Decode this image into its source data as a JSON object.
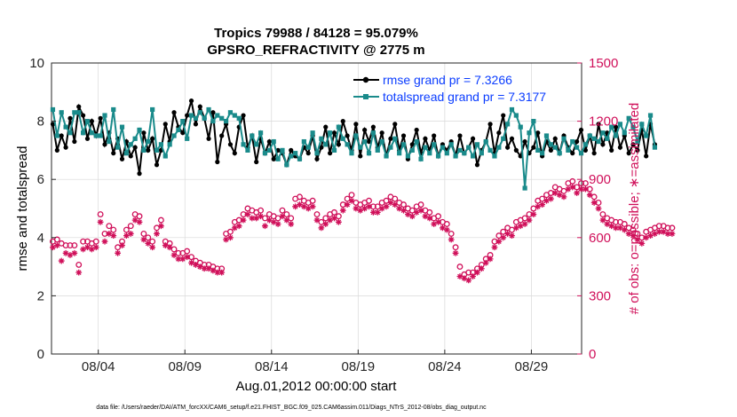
{
  "colors": {
    "rmse": "#000000",
    "spread": "#1a8b8b",
    "obs": "#d0105a",
    "legend_text": "#0b3dff",
    "grid": "#d9d9d9",
    "axis": "#262626"
  },
  "chart_data": {
    "type": "line",
    "title_line1": "Tropics 79988 / 84128 = 95.079%",
    "title_line2": "GPSRO_REFRACTIVITY @ 2775 m",
    "xlabel": "Aug.01,2012 00:00:00 start",
    "ylabel_left": "rmse and totalspread",
    "ylabel_right": "# of obs: o=possible; ∗=assimilated",
    "footnote": "data file: /Users/raeder/DAI/ATM_forcXX/CAM6_setup/f.e21.FHIST_BGC.f09_025.CAM6assim.011/Diags_NTrS_2012-08/obs_diag_output.nc",
    "xlim": [
      1.3,
      31.9
    ],
    "ylim_left": [
      0,
      10
    ],
    "ylim_right": [
      0,
      1500
    ],
    "yticks_left": [
      "0",
      "2",
      "4",
      "6",
      "8",
      "10"
    ],
    "yticks_right": [
      "0",
      "300",
      "600",
      "900",
      "1200",
      "1500"
    ],
    "xticks": [
      {
        "day": 4,
        "label": "08/04"
      },
      {
        "day": 9,
        "label": "08/09"
      },
      {
        "day": 14,
        "label": "08/14"
      },
      {
        "day": 19,
        "label": "08/19"
      },
      {
        "day": 24,
        "label": "08/24"
      },
      {
        "day": 29,
        "label": "08/29"
      }
    ],
    "legend": [
      {
        "name": "rmse grand pr = 7.3266"
      },
      {
        "name": "totalspread grand pr = 7.3177"
      }
    ],
    "x_start_day": 1.375,
    "x_step_day": 0.25,
    "series": [
      {
        "name": "rmse",
        "axis": "left",
        "values": [
          7.9,
          7.0,
          7.5,
          7.1,
          8.1,
          7.3,
          8.5,
          8.2,
          7.4,
          8.0,
          7.5,
          8.1,
          7.2,
          7.6,
          6.9,
          7.4,
          6.7,
          7.3,
          6.8,
          7.1,
          6.2,
          7.6,
          7.0,
          7.4,
          6.5,
          7.0,
          7.9,
          7.3,
          8.3,
          7.8,
          7.6,
          8.2,
          8.7,
          7.9,
          8.5,
          8.1,
          7.4,
          8.3,
          6.6,
          7.5,
          7.9,
          7.2,
          6.9,
          7.8,
          8.2,
          7.1,
          7.5,
          6.6,
          7.4,
          6.9,
          7.3,
          6.7,
          7.0,
          6.9,
          6.5,
          7.0,
          6.8,
          6.7,
          7.1,
          6.9,
          7.5,
          6.7,
          7.1,
          7.8,
          6.9,
          7.6,
          7.2,
          8.0,
          7.5,
          7.0,
          7.9,
          6.8,
          7.7,
          7.3,
          7.8,
          7.1,
          7.6,
          6.8,
          7.4,
          7.9,
          7.0,
          7.5,
          6.7,
          7.2,
          7.7,
          6.9,
          7.4,
          7.0,
          7.5,
          6.8,
          7.2,
          7.0,
          7.3,
          6.8,
          7.5,
          6.9,
          7.1,
          7.4,
          6.5,
          7.0,
          7.3,
          7.9,
          6.9,
          7.6,
          8.2,
          7.1,
          7.4,
          7.0,
          6.8,
          7.3,
          6.9,
          7.1,
          7.6,
          6.8,
          7.3,
          7.0,
          7.4,
          6.9,
          7.5,
          7.1,
          6.9,
          7.3,
          7.7,
          7.0,
          7.5,
          6.9,
          7.9,
          7.2,
          7.6,
          7.0,
          7.8,
          7.1,
          7.5,
          6.9,
          7.2,
          7.0,
          7.7,
          6.8,
          7.9,
          7.2
        ]
      },
      {
        "name": "totalspread",
        "axis": "left",
        "values": [
          8.4,
          7.5,
          8.3,
          7.8,
          7.6,
          8.3,
          8.3,
          7.6,
          8.0,
          7.6,
          7.5,
          7.5,
          8.2,
          7.3,
          8.4,
          7.1,
          7.8,
          6.9,
          7.2,
          7.4,
          7.7,
          7.0,
          7.3,
          8.4,
          7.0,
          7.2,
          6.8,
          7.2,
          7.5,
          7.7,
          8.0,
          7.4,
          8.2,
          8.1,
          8.3,
          8.1,
          8.4,
          8.0,
          8.2,
          8.1,
          8.0,
          8.3,
          8.2,
          8.1,
          7.2,
          7.0,
          7.5,
          7.2,
          7.6,
          6.9,
          7.0,
          7.3,
          6.7,
          7.0,
          6.5,
          6.8,
          6.9,
          6.7,
          7.3,
          7.1,
          7.6,
          6.9,
          7.4,
          7.2,
          7.6,
          7.0,
          7.8,
          7.4,
          7.2,
          6.9,
          7.5,
          7.1,
          7.3,
          6.9,
          7.6,
          7.0,
          7.3,
          6.8,
          7.1,
          7.4,
          6.9,
          7.2,
          6.8,
          7.0,
          7.3,
          6.7,
          7.1,
          6.9,
          7.2,
          6.8,
          7.1,
          6.9,
          7.2,
          6.8,
          7.0,
          6.9,
          7.1,
          6.8,
          7.2,
          6.9,
          7.3,
          7.0,
          6.8,
          7.1,
          7.4,
          7.9,
          8.4,
          8.2,
          7.8,
          5.7,
          7.6,
          8.0,
          7.0,
          6.9,
          7.5,
          7.2,
          7.1,
          6.9,
          7.4,
          7.0,
          7.3,
          7.1,
          6.9,
          7.2,
          7.5,
          7.4,
          7.3,
          7.6,
          7.4,
          7.8,
          7.5,
          7.9,
          7.6,
          8.1,
          7.8,
          7.3,
          7.9,
          7.5,
          8.2,
          7.1
        ]
      },
      {
        "name": "obs possible",
        "axis": "right",
        "marker": "o",
        "values": [
          580,
          590,
          570,
          560,
          560,
          560,
          460,
          580,
          580,
          570,
          580,
          720,
          620,
          660,
          640,
          550,
          580,
          640,
          660,
          720,
          710,
          620,
          600,
          580,
          650,
          690,
          580,
          570,
          540,
          520,
          520,
          530,
          500,
          480,
          470,
          460,
          460,
          450,
          440,
          440,
          620,
          630,
          680,
          690,
          720,
          750,
          740,
          730,
          740,
          700,
          720,
          710,
          700,
          740,
          720,
          700,
          800,
          810,
          790,
          780,
          790,
          720,
          680,
          700,
          720,
          730,
          710,
          770,
          800,
          820,
          780,
          770,
          780,
          790,
          760,
          760,
          780,
          790,
          810,
          800,
          780,
          770,
          750,
          740,
          760,
          770,
          740,
          730,
          700,
          710,
          680,
          670,
          620,
          550,
          450,
          410,
          420,
          420,
          440,
          460,
          490,
          510,
          580,
          610,
          630,
          650,
          640,
          680,
          690,
          700,
          720,
          750,
          790,
          800,
          820,
          830,
          860,
          850,
          840,
          880,
          890,
          860,
          880,
          880,
          850,
          810,
          780,
          720,
          700,
          690,
          680,
          680,
          670,
          650,
          640,
          620,
          600,
          630,
          640,
          650,
          660,
          660,
          650,
          650
        ]
      },
      {
        "name": "obs assimilated",
        "axis": "right",
        "marker": "*",
        "values": [
          550,
          560,
          480,
          520,
          510,
          520,
          420,
          540,
          550,
          540,
          550,
          680,
          580,
          620,
          610,
          520,
          560,
          610,
          620,
          690,
          680,
          590,
          570,
          550,
          620,
          660,
          560,
          550,
          510,
          490,
          490,
          500,
          470,
          460,
          450,
          440,
          440,
          430,
          420,
          420,
          590,
          600,
          650,
          660,
          690,
          720,
          700,
          700,
          710,
          660,
          690,
          680,
          670,
          710,
          690,
          670,
          760,
          770,
          760,
          750,
          760,
          690,
          650,
          670,
          690,
          700,
          680,
          740,
          770,
          790,
          750,
          740,
          750,
          760,
          730,
          730,
          750,
          760,
          780,
          770,
          750,
          740,
          720,
          710,
          730,
          740,
          710,
          700,
          670,
          680,
          650,
          640,
          590,
          520,
          400,
          390,
          380,
          400,
          420,
          440,
          470,
          490,
          550,
          580,
          600,
          620,
          610,
          650,
          660,
          670,
          690,
          720,
          760,
          770,
          790,
          800,
          830,
          820,
          810,
          850,
          860,
          830,
          850,
          850,
          820,
          780,
          750,
          690,
          670,
          660,
          650,
          650,
          640,
          620,
          610,
          590,
          570,
          600,
          610,
          620,
          630,
          630,
          620,
          620
        ]
      }
    ]
  }
}
